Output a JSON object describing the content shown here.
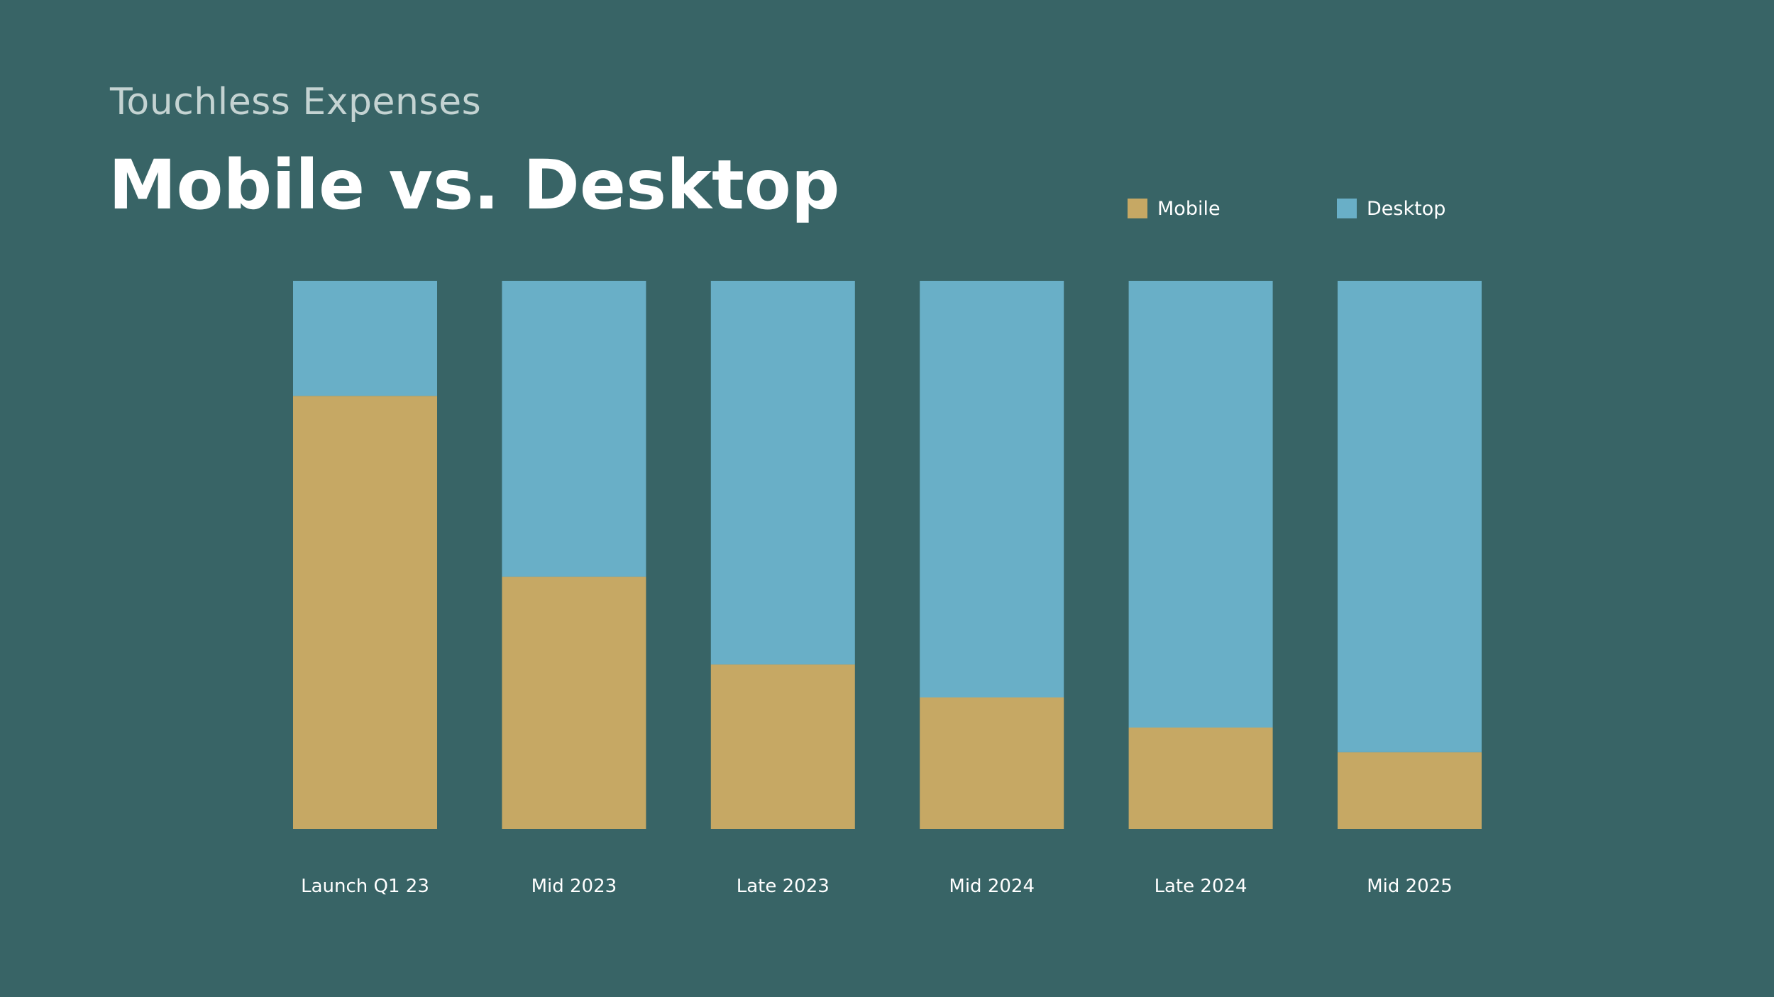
{
  "header": {
    "subtitle": "Touchless Expenses",
    "title": "Mobile vs. Desktop"
  },
  "colors": {
    "background": "#386466",
    "mobile": "#c6a864",
    "desktop": "#69afc7",
    "text": "#ffffff",
    "subtitle": "#c4d3d2"
  },
  "chart_data": {
    "type": "bar",
    "stacked": true,
    "normalized": true,
    "title": "Mobile vs. Desktop",
    "subtitle": "Touchless Expenses",
    "xlabel": "",
    "ylabel": "",
    "ylim": [
      0,
      100
    ],
    "grid": false,
    "legend_position": "top-right",
    "categories": [
      "Launch Q1 23",
      "Mid 2023",
      "Late 2023",
      "Mid 2024",
      "Late 2024",
      "Mid 2025"
    ],
    "series": [
      {
        "name": "Mobile",
        "color": "#c6a864",
        "values": [
          79,
          46,
          30,
          24,
          18.5,
          14
        ]
      },
      {
        "name": "Desktop",
        "color": "#69afc7",
        "values": [
          21,
          54,
          70,
          76,
          81.5,
          86
        ]
      }
    ]
  }
}
